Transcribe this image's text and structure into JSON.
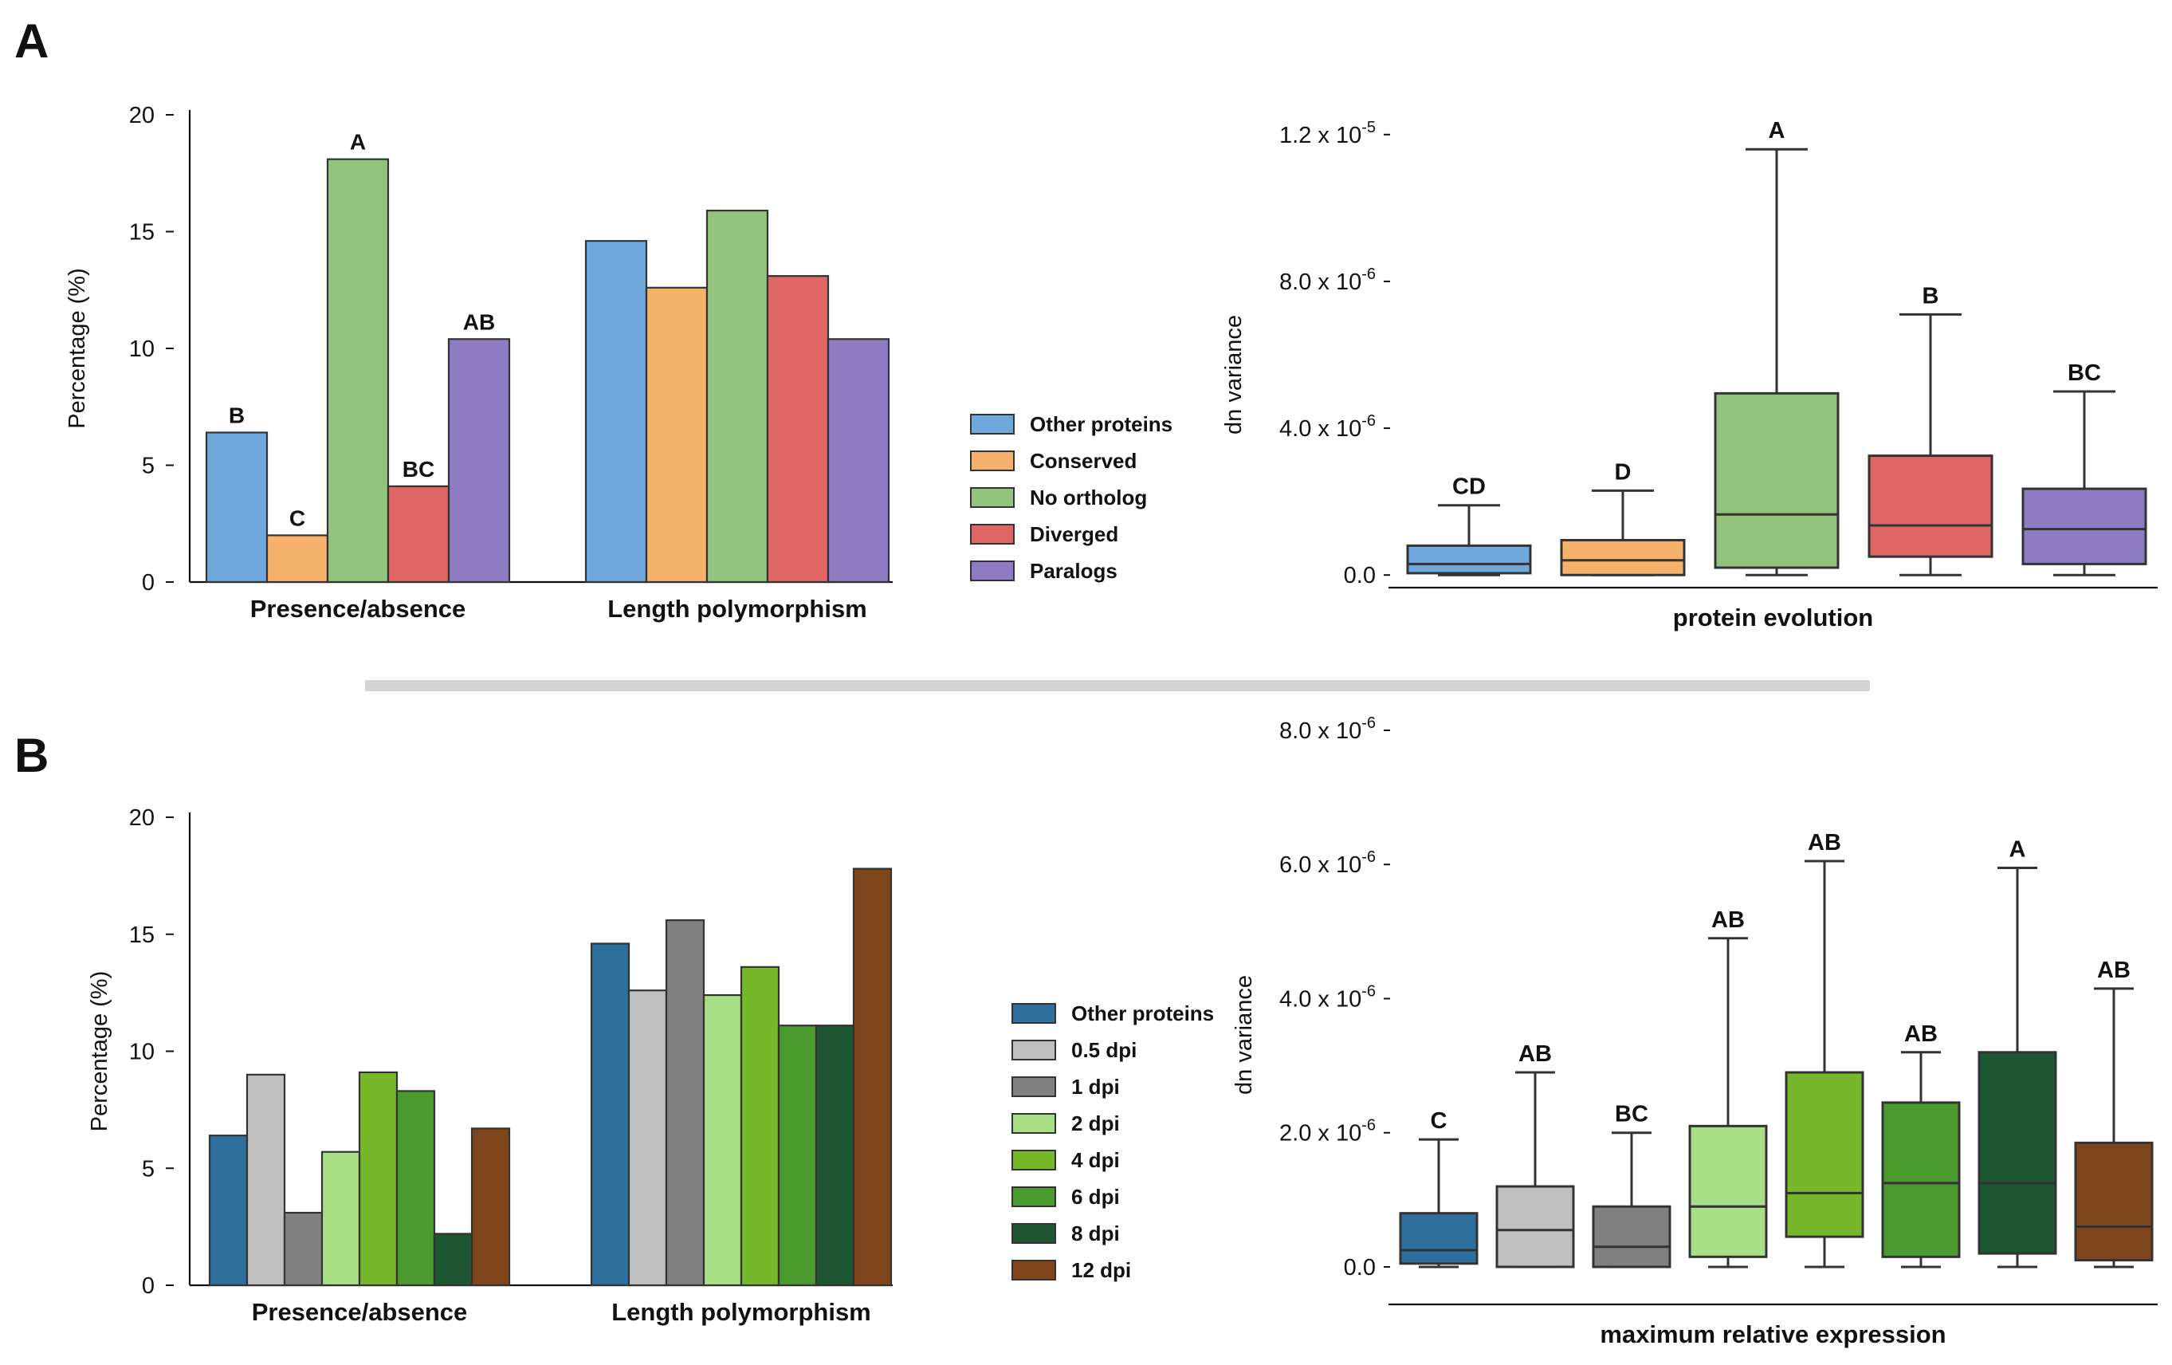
{
  "panel_labels": {
    "a": "A",
    "b": "B"
  },
  "colors": {
    "a": [
      "#6fa8dc",
      "#f6b26b",
      "#93c47d",
      "#e06666",
      "#8e7cc3"
    ],
    "b": [
      "#2e6f9e",
      "#c0c0c0",
      "#808080",
      "#a8de85",
      "#76b82a",
      "#4a9a2e",
      "#1e5631",
      "#7f461b"
    ],
    "separator": "#d3d3d3"
  },
  "chart_data": [
    {
      "id": "A-bar",
      "type": "bar",
      "ylabel": "Percentage (%)",
      "ylim": [
        0,
        20
      ],
      "yticks": [
        0,
        5,
        10,
        15,
        20
      ],
      "categories": [
        "Presence/absence",
        "Length polymorphism"
      ],
      "series": [
        {
          "name": "Other proteins",
          "values": [
            6.4,
            14.6
          ]
        },
        {
          "name": "Conserved",
          "values": [
            2.0,
            12.6
          ]
        },
        {
          "name": "No ortholog",
          "values": [
            18.1,
            15.9
          ]
        },
        {
          "name": "Diverged",
          "values": [
            4.1,
            13.1
          ]
        },
        {
          "name": "Paralogs",
          "values": [
            10.4,
            10.4
          ]
        }
      ],
      "significance_labels": [
        [
          "B",
          "C",
          "A",
          "BC",
          "AB"
        ],
        [
          "",
          "",
          "",
          "",
          ""
        ]
      ],
      "legend": [
        "Other proteins",
        "Conserved",
        "No ortholog",
        "Diverged",
        "Paralogs"
      ]
    },
    {
      "id": "A-box",
      "type": "box",
      "ylabel": "dn variance",
      "xlabel": "protein evolution",
      "ylim_e6": [
        -0.3,
        12.3
      ],
      "ytick_values_e6": [
        0,
        4,
        8,
        12
      ],
      "ytick_labels": [
        {
          "base": "0.0",
          "exp": ""
        },
        {
          "base": "4.0 x 10",
          "exp": "-6"
        },
        {
          "base": "8.0 x 10",
          "exp": "-6"
        },
        {
          "base": "1.2 x 10",
          "exp": "-5"
        }
      ],
      "groups": [
        "Other proteins",
        "Conserved",
        "No ortholog",
        "Diverged",
        "Paralogs"
      ],
      "boxes_e6": [
        {
          "whislo": 0.0,
          "q1": 0.05,
          "med": 0.3,
          "q3": 0.8,
          "whishi": 1.9
        },
        {
          "whislo": 0.0,
          "q1": 0.0,
          "med": 0.4,
          "q3": 0.95,
          "whishi": 2.3
        },
        {
          "whislo": 0.0,
          "q1": 0.2,
          "med": 1.65,
          "q3": 4.95,
          "whishi": 11.6
        },
        {
          "whislo": 0.0,
          "q1": 0.5,
          "med": 1.35,
          "q3": 3.25,
          "whishi": 7.1
        },
        {
          "whislo": 0.0,
          "q1": 0.3,
          "med": 1.25,
          "q3": 2.35,
          "whishi": 5.0
        }
      ],
      "significance_labels": [
        "CD",
        "D",
        "A",
        "B",
        "BC"
      ]
    },
    {
      "id": "B-bar",
      "type": "bar",
      "ylabel": "Percentage (%)",
      "ylim": [
        0,
        20
      ],
      "yticks": [
        0,
        5,
        10,
        15,
        20
      ],
      "categories": [
        "Presence/absence",
        "Length polymorphism"
      ],
      "series": [
        {
          "name": "Other proteins",
          "values": [
            6.4,
            14.6
          ]
        },
        {
          "name": "0.5 dpi",
          "values": [
            9.0,
            12.6
          ]
        },
        {
          "name": "1 dpi",
          "values": [
            3.1,
            15.6
          ]
        },
        {
          "name": "2 dpi",
          "values": [
            5.7,
            12.4
          ]
        },
        {
          "name": "4 dpi",
          "values": [
            9.1,
            13.6
          ]
        },
        {
          "name": "6 dpi",
          "values": [
            8.3,
            11.1
          ]
        },
        {
          "name": "8 dpi",
          "values": [
            2.2,
            11.1
          ]
        },
        {
          "name": "12 dpi",
          "values": [
            6.7,
            17.8
          ]
        }
      ],
      "legend": [
        "Other proteins",
        "0.5 dpi",
        "1 dpi",
        "2 dpi",
        "4 dpi",
        "6 dpi",
        "8 dpi",
        "12 dpi"
      ]
    },
    {
      "id": "B-box",
      "type": "box",
      "ylabel": "dn variance",
      "xlabel": "maximum relative expression",
      "ylim_e6": [
        -0.25,
        8.0
      ],
      "ytick_values_e6": [
        0,
        2,
        4,
        6,
        8
      ],
      "ytick_labels": [
        {
          "base": "0.0",
          "exp": ""
        },
        {
          "base": "2.0 x 10",
          "exp": "-6"
        },
        {
          "base": "4.0 x 10",
          "exp": "-6"
        },
        {
          "base": "6.0 x 10",
          "exp": "-6"
        },
        {
          "base": "8.0 x 10",
          "exp": "-6"
        }
      ],
      "groups": [
        "Other proteins",
        "0.5 dpi",
        "1 dpi",
        "2 dpi",
        "4 dpi",
        "6 dpi",
        "8 dpi",
        "12 dpi"
      ],
      "boxes_e6": [
        {
          "whislo": 0.0,
          "q1": 0.05,
          "med": 0.25,
          "q3": 0.8,
          "whishi": 1.9
        },
        {
          "whislo": 0.0,
          "q1": 0.0,
          "med": 0.55,
          "q3": 1.2,
          "whishi": 2.9
        },
        {
          "whislo": 0.0,
          "q1": 0.0,
          "med": 0.3,
          "q3": 0.9,
          "whishi": 2.0
        },
        {
          "whislo": 0.0,
          "q1": 0.15,
          "med": 0.9,
          "q3": 2.1,
          "whishi": 4.9
        },
        {
          "whislo": 0.0,
          "q1": 0.45,
          "med": 1.1,
          "q3": 2.9,
          "whishi": 6.05
        },
        {
          "whislo": 0.0,
          "q1": 0.15,
          "med": 1.25,
          "q3": 2.45,
          "whishi": 3.2
        },
        {
          "whislo": 0.0,
          "q1": 0.2,
          "med": 1.25,
          "q3": 3.2,
          "whishi": 5.95
        },
        {
          "whislo": 0.0,
          "q1": 0.1,
          "med": 0.6,
          "q3": 1.85,
          "whishi": 4.15
        }
      ],
      "significance_labels": [
        "C",
        "AB",
        "BC",
        "AB",
        "AB",
        "AB",
        "A",
        "AB"
      ]
    }
  ]
}
